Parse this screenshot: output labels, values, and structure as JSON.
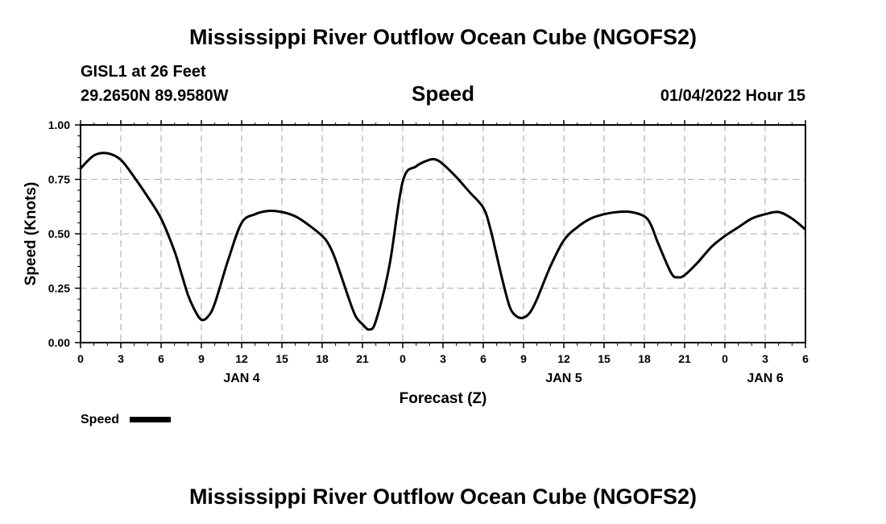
{
  "header": {
    "title": "Mississippi River Outflow Ocean Cube (NGOFS2)",
    "station": "GISL1 at 26 Feet",
    "coords": "29.2650N  89.9580W",
    "datetime": "01/04/2022 Hour 15",
    "footer_title": "Mississippi River Outflow Ocean Cube (NGOFS2)"
  },
  "chart_data": {
    "type": "line",
    "title": "Speed",
    "xlabel": "Forecast (Z)",
    "ylabel": "Speed (Knots)",
    "xlim": [
      0,
      54
    ],
    "ylim": [
      0,
      1
    ],
    "grid": true,
    "yticks": [
      0,
      0.25,
      0.5,
      0.75,
      1.0
    ],
    "ytick_labels": [
      "0.00",
      "0.25",
      "0.50",
      "0.75",
      "1.00"
    ],
    "xticks": [
      0,
      3,
      6,
      9,
      12,
      15,
      18,
      21,
      24,
      27,
      30,
      33,
      36,
      39,
      42,
      45,
      48,
      51,
      54
    ],
    "xtick_labels": [
      "0",
      "3",
      "6",
      "9",
      "12",
      "15",
      "18",
      "21",
      "0",
      "3",
      "6",
      "9",
      "12",
      "15",
      "18",
      "21",
      "0",
      "3",
      "6"
    ],
    "day_labels": [
      {
        "x": 12,
        "label": "JAN 4"
      },
      {
        "x": 36,
        "label": "JAN 5"
      },
      {
        "x": 51,
        "label": "JAN 6"
      }
    ],
    "legend": "bottom-left",
    "series": [
      {
        "name": "Speed",
        "color": "#000000",
        "x": [
          0,
          1,
          2,
          3,
          4,
          5,
          6,
          7,
          7.5,
          8,
          8.5,
          9,
          9.5,
          10,
          11,
          12,
          13,
          14,
          15,
          16,
          17,
          18,
          18.5,
          19,
          20,
          20.5,
          21,
          21.5,
          22,
          23,
          24,
          25,
          26,
          26.5,
          27,
          28,
          29,
          30,
          30.5,
          31,
          31.5,
          32,
          32.5,
          33,
          33.5,
          34,
          35,
          36,
          37,
          38,
          39,
          40,
          41,
          42,
          42.5,
          43,
          44,
          44.5,
          45,
          46,
          47,
          48,
          49,
          50,
          51,
          52,
          53,
          54
        ],
        "values": [
          0.8,
          0.86,
          0.87,
          0.84,
          0.76,
          0.67,
          0.57,
          0.42,
          0.32,
          0.22,
          0.15,
          0.105,
          0.12,
          0.18,
          0.38,
          0.55,
          0.59,
          0.605,
          0.6,
          0.58,
          0.54,
          0.49,
          0.45,
          0.38,
          0.2,
          0.12,
          0.085,
          0.06,
          0.1,
          0.35,
          0.74,
          0.81,
          0.84,
          0.84,
          0.82,
          0.76,
          0.69,
          0.62,
          0.53,
          0.4,
          0.27,
          0.16,
          0.12,
          0.115,
          0.14,
          0.2,
          0.35,
          0.47,
          0.53,
          0.57,
          0.59,
          0.6,
          0.6,
          0.58,
          0.54,
          0.46,
          0.32,
          0.3,
          0.31,
          0.37,
          0.44,
          0.49,
          0.53,
          0.57,
          0.59,
          0.6,
          0.57,
          0.52
        ]
      }
    ]
  }
}
